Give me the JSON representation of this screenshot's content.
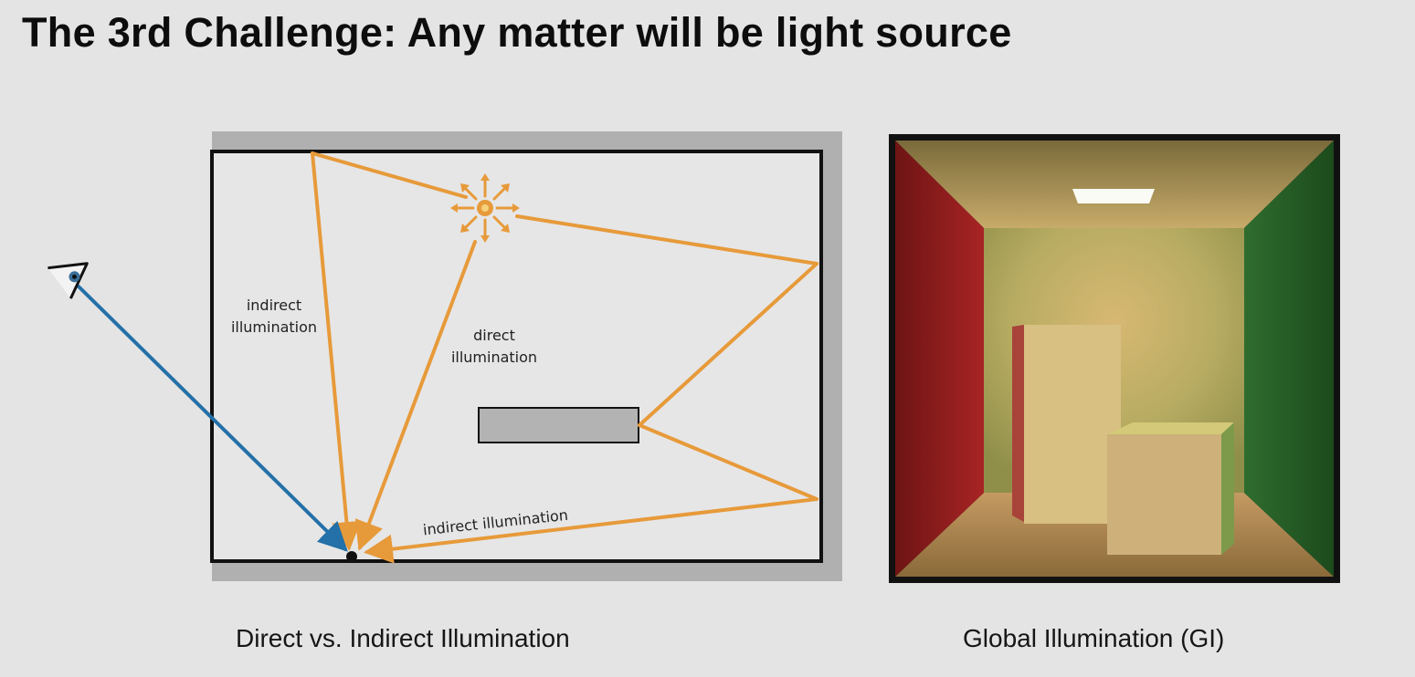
{
  "slide": {
    "title": "The 3rd Challenge: Any matter will be light source"
  },
  "diagram": {
    "labels": {
      "indirect_left_1": "indirect",
      "indirect_left_2": "illumination",
      "direct_1": "direct",
      "direct_2": "illumination",
      "indirect_bottom": "indirect illumination"
    },
    "caption": "Direct vs. Indirect Illumination",
    "colors": {
      "direct_ray": "#e79a3a",
      "eye_ray": "#2470a8"
    },
    "icons": [
      "eye-icon",
      "light-source-icon"
    ]
  },
  "render": {
    "caption": "Global Illumination (GI)",
    "colors": {
      "left_wall": "#a41f1f",
      "right_wall": "#2a6a2a",
      "back_wall": "#cdb070"
    }
  }
}
